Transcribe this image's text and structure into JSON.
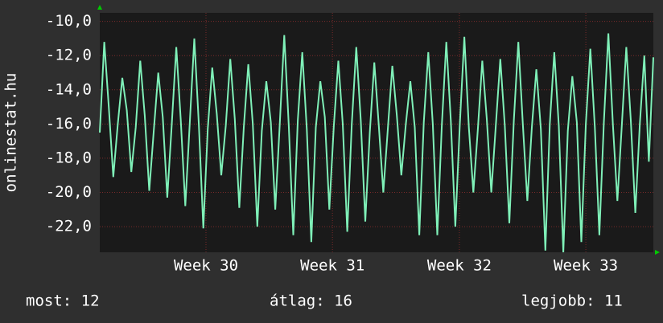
{
  "chart_data": {
    "type": "line",
    "y_label": "onlinestat.hu",
    "series": [
      {
        "name": null,
        "color": "#7ff0b8",
        "values": [
          -16.5,
          -11.2,
          -15.0,
          -19.1,
          -16.0,
          -13.3,
          -15.2,
          -18.8,
          -16.2,
          -12.3,
          -15.5,
          -19.9,
          -16.4,
          -13.0,
          -15.6,
          -20.3,
          -16.0,
          -11.5,
          -15.8,
          -20.8,
          -15.9,
          -11.0,
          -16.0,
          -22.1,
          -16.3,
          -12.7,
          -15.4,
          -19.0,
          -16.1,
          -12.2,
          -15.7,
          -20.9,
          -16.2,
          -12.5,
          -16.0,
          -22.0,
          -16.4,
          -13.5,
          -15.9,
          -21.0,
          -16.0,
          -10.8,
          -16.1,
          -22.5,
          -15.8,
          -11.8,
          -16.3,
          -22.9,
          -16.2,
          -13.5,
          -15.6,
          -21.0,
          -16.1,
          -12.3,
          -16.0,
          -22.3,
          -16.0,
          -11.5,
          -15.8,
          -21.7,
          -16.5,
          -12.4,
          -16.1,
          -20.0,
          -16.3,
          -12.6,
          -15.5,
          -19.0,
          -16.0,
          -13.5,
          -16.2,
          -22.5,
          -15.9,
          -11.8,
          -16.0,
          -22.5,
          -16.1,
          -11.2,
          -15.8,
          -22.0,
          -16.0,
          -10.9,
          -16.2,
          -20.0,
          -16.3,
          -12.3,
          -15.7,
          -20.0,
          -16.1,
          -12.2,
          -16.1,
          -21.8,
          -15.8,
          -11.2,
          -16.0,
          -20.5,
          -16.2,
          -12.8,
          -16.3,
          -23.4,
          -16.0,
          -11.8,
          -16.1,
          -23.5,
          -16.4,
          -13.2,
          -15.9,
          -22.9,
          -16.0,
          -11.6,
          -16.2,
          -22.5,
          -15.9,
          -10.7,
          -16.0,
          -20.5,
          -16.1,
          -11.5,
          -15.8,
          -21.2,
          -16.0,
          -12.0,
          -18.2,
          -12.1
        ]
      }
    ],
    "xlim": [
      0,
      123
    ],
    "xticks": [
      {
        "value": 23.6,
        "label": "Week 30"
      },
      {
        "value": 51.7,
        "label": "Week 31"
      },
      {
        "value": 79.9,
        "label": "Week 32"
      },
      {
        "value": 108.0,
        "label": "Week 33"
      }
    ],
    "ylim": [
      -23.5,
      -9.5
    ],
    "yticks": [
      {
        "value": -10,
        "label": "-10,0"
      },
      {
        "value": -12,
        "label": "-12,0"
      },
      {
        "value": -14,
        "label": "-14,0"
      },
      {
        "value": -16,
        "label": "-16,0"
      },
      {
        "value": -18,
        "label": "-18,0"
      },
      {
        "value": -20,
        "label": "-20,0"
      },
      {
        "value": -22,
        "label": "-22,0"
      }
    ],
    "grid": true,
    "footer": {
      "current": "most: 12",
      "average": "átlag: 16",
      "best": "legjobb: 11"
    }
  }
}
